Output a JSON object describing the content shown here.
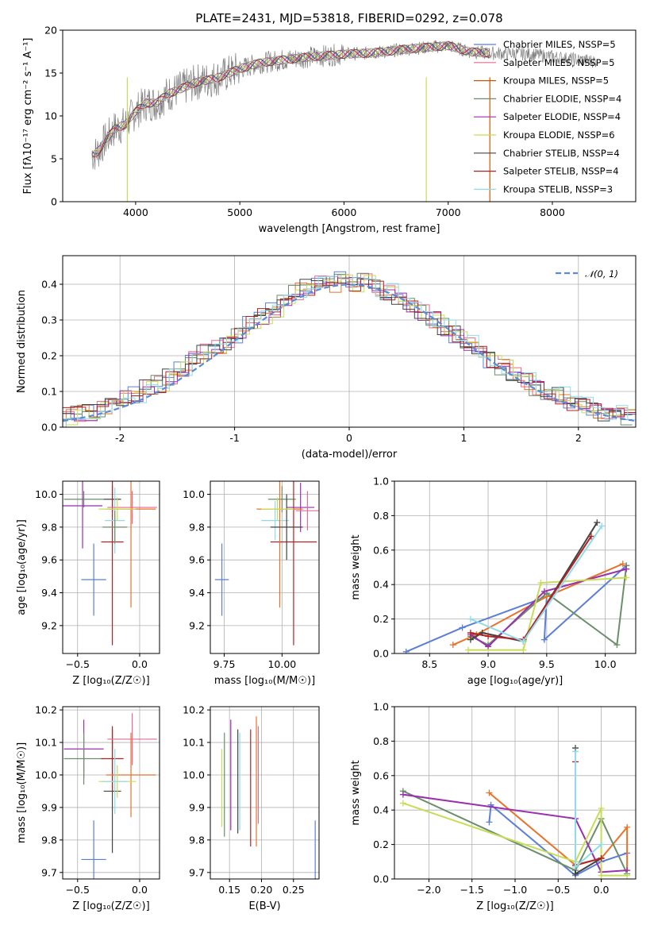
{
  "colors": [
    "#5b7fd6",
    "#e8722a",
    "#6a8f6a",
    "#9b2fae",
    "#d35400",
    "#c7dd55",
    "#444444",
    "#b22222",
    "#8fdcea",
    "#a0a0a0",
    "#e86a8f"
  ],
  "chart_data": [
    {
      "id": "spectrum",
      "type": "line",
      "title": "PLATE=2431, MJD=53818, FIBERID=0292, z=0.078",
      "xlabel": "wavelength [Angstrom, rest frame]",
      "ylabel": "Flux [fλ10⁻¹⁷ erg cm⁻² s⁻¹ A⁻¹]",
      "xlim": [
        3300,
        8800
      ],
      "ylim": [
        0,
        20
      ],
      "xticks": [
        4000,
        5000,
        6000,
        7000,
        8000
      ],
      "yticks": [
        0,
        5,
        10,
        15,
        20
      ],
      "data_x": [
        3600,
        3650,
        3700,
        3800,
        3900,
        4000,
        4100,
        4200,
        4300,
        4400,
        4500,
        4600,
        4700,
        4800,
        4900,
        5000,
        5200,
        5400,
        5600,
        5800,
        6000,
        6200,
        6400,
        6600,
        6800,
        7000,
        7200,
        7400,
        7600,
        7800,
        8000,
        8200,
        8400
      ],
      "data_y": [
        5.5,
        6,
        7,
        8.5,
        9,
        10.5,
        11.5,
        11.5,
        12.5,
        13,
        13.5,
        14,
        14.2,
        14.5,
        15,
        15.5,
        16.2,
        16.5,
        16.8,
        17,
        17.2,
        17.3,
        17.5,
        17.8,
        18,
        18.2,
        17.5,
        17.3,
        17.3,
        17.2,
        16.9,
        16.6,
        16.4
      ],
      "legend": [
        {
          "label": "Chabrier MILES, NSSP=5",
          "color": "#5b7fd6"
        },
        {
          "label": "Salpeter MILES, NSSP=5",
          "color": "#e86a8f"
        },
        {
          "label": "Kroupa MILES, NSSP=5",
          "color": "#d35400"
        },
        {
          "label": "Chabrier ELODIE, NSSP=4",
          "color": "#6a8f6a"
        },
        {
          "label": "Salpeter ELODIE, NSSP=4",
          "color": "#9b2fae"
        },
        {
          "label": "Kroupa ELODIE, NSSP=6",
          "color": "#c7dd55"
        },
        {
          "label": "Chabrier STELIB, NSSP=4",
          "color": "#444444"
        },
        {
          "label": "Salpeter STELIB, NSSP=4",
          "color": "#b22222"
        },
        {
          "label": "Kroupa STELIB, NSSP=3",
          "color": "#8fdcea"
        }
      ],
      "legend_position": "upper-right"
    },
    {
      "id": "residuals",
      "type": "bar",
      "xlabel": "(data-model)/error",
      "ylabel": "Normed distribution",
      "xlim": [
        -2.5,
        2.5
      ],
      "ylim": [
        0,
        0.48
      ],
      "xticks": [
        -2,
        -1,
        0,
        1,
        2
      ],
      "yticks": [
        0.0,
        0.1,
        0.2,
        0.3,
        0.4
      ],
      "bin_width": 0.1,
      "hist": [
        0.03,
        0.04,
        0.04,
        0.05,
        0.06,
        0.08,
        0.09,
        0.11,
        0.12,
        0.14,
        0.16,
        0.19,
        0.21,
        0.22,
        0.24,
        0.26,
        0.29,
        0.31,
        0.33,
        0.36,
        0.38,
        0.39,
        0.4,
        0.4,
        0.42,
        0.4,
        0.41,
        0.39,
        0.38,
        0.36,
        0.34,
        0.32,
        0.3,
        0.28,
        0.26,
        0.24,
        0.22,
        0.19,
        0.17,
        0.15,
        0.13,
        0.11,
        0.1,
        0.09,
        0.07,
        0.06,
        0.05,
        0.04,
        0.04,
        0.03
      ],
      "normal_label": "𝒩(0, 1)",
      "legend_position": "upper-right"
    },
    {
      "id": "age-vs-Z",
      "type": "scatter",
      "xlabel": "Z [log₁₀(Z/Z☉)]",
      "ylabel": "age  [log₁₀(age/yr)]",
      "xlim": [
        -0.62,
        0.16
      ],
      "ylim": [
        9.03,
        10.08
      ],
      "xticks": [
        -0.5,
        0.0
      ],
      "xtick_labels": [
        "−0.5",
        "0.0"
      ],
      "yticks": [
        9.2,
        9.4,
        9.6,
        9.8,
        10.0
      ],
      "points": [
        {
          "x": -0.37,
          "y": 9.48,
          "xerr": 0.1,
          "yerr": 0.22,
          "color": "#5b7fd6"
        },
        {
          "x": -0.45,
          "y": 9.97,
          "xerr": 0.16,
          "yerr": 0.05,
          "color": "#6a8f6a"
        },
        {
          "x": -0.46,
          "y": 9.93,
          "xerr": 0.16,
          "yerr": 0.26,
          "color": "#9b2fae"
        },
        {
          "x": -0.22,
          "y": 9.97,
          "xerr": 0.07,
          "yerr": 0.08,
          "color": "#444444"
        },
        {
          "x": -0.22,
          "y": 9.71,
          "xerr": 0.09,
          "yerr": 0.63,
          "color": "#b22222"
        },
        {
          "x": -0.2,
          "y": 9.84,
          "xerr": 0.08,
          "yerr": 0.2,
          "color": "#8fdcea"
        },
        {
          "x": -0.06,
          "y": 9.92,
          "xerr": 0.2,
          "yerr": 0.1,
          "color": "#e86a8f"
        },
        {
          "x": -0.07,
          "y": 9.91,
          "xerr": 0.2,
          "yerr": 0.6,
          "color": "#e8722a"
        },
        {
          "x": -0.18,
          "y": 9.91,
          "xerr": 0.15,
          "yerr": 0.07,
          "color": "#c7dd55"
        },
        {
          "x": -0.2,
          "y": 9.8,
          "xerr": 0.1,
          "yerr": 0.1,
          "color": "#6a8f6a"
        }
      ]
    },
    {
      "id": "age-vs-mass",
      "type": "scatter",
      "xlabel": "mass [log₁₀(M/M☉)]",
      "ylabel": "",
      "xlim": [
        9.69,
        10.16
      ],
      "ylim": [
        9.03,
        10.08
      ],
      "xticks": [
        9.75,
        10.0
      ],
      "xtick_labels": [
        "9.75",
        "10.00"
      ],
      "yticks": [
        9.2,
        9.4,
        9.6,
        9.8,
        10.0
      ],
      "points": [
        {
          "x": 9.74,
          "y": 9.48,
          "xerr": 0.03,
          "yerr": 0.22,
          "color": "#5b7fd6"
        },
        {
          "x": 10.0,
          "y": 9.97,
          "xerr": 0.06,
          "yerr": 0.08,
          "color": "#6a8f6a"
        },
        {
          "x": 10.08,
          "y": 9.92,
          "xerr": 0.06,
          "yerr": 0.15,
          "color": "#9b2fae"
        },
        {
          "x": 9.97,
          "y": 9.84,
          "xerr": 0.06,
          "yerr": 0.12,
          "color": "#8fdcea"
        },
        {
          "x": 10.05,
          "y": 9.71,
          "xerr": 0.1,
          "yerr": 0.63,
          "color": "#b22222"
        },
        {
          "x": 9.99,
          "y": 9.91,
          "xerr": 0.1,
          "yerr": 0.6,
          "color": "#e8722a"
        },
        {
          "x": 10.02,
          "y": 9.8,
          "xerr": 0.07,
          "yerr": 0.2,
          "color": "#444444"
        },
        {
          "x": 10.11,
          "y": 9.9,
          "xerr": 0.05,
          "yerr": 0.12,
          "color": "#e86a8f"
        },
        {
          "x": 9.98,
          "y": 9.91,
          "xerr": 0.07,
          "yerr": 0.07,
          "color": "#c7dd55"
        }
      ]
    },
    {
      "id": "weight-vs-age",
      "type": "line",
      "xlabel": "age  [log₁₀(age/yr)]",
      "ylabel": "mass weight",
      "xlim": [
        8.2,
        10.26
      ],
      "ylim": [
        0,
        1.0
      ],
      "xticks": [
        8.5,
        9.0,
        9.5,
        10.0
      ],
      "xtick_labels": [
        "8.5",
        "9.0",
        "9.5",
        "10.0"
      ],
      "yticks": [
        0.0,
        0.2,
        0.4,
        0.6,
        0.8,
        1.0
      ],
      "series": [
        {
          "color": "#5b7fd6",
          "x": [
            8.3,
            8.78,
            9.5,
            9.48,
            10.18
          ],
          "y": [
            0.01,
            0.15,
            0.33,
            0.08,
            0.51
          ]
        },
        {
          "color": "#e8722a",
          "x": [
            8.7,
            8.9,
            9.5,
            10.15
          ],
          "y": [
            0.05,
            0.11,
            0.33,
            0.52
          ]
        },
        {
          "color": "#6a8f6a",
          "x": [
            8.85,
            9.0,
            9.5,
            10.1,
            10.18
          ],
          "y": [
            0.1,
            0.05,
            0.35,
            0.05,
            0.51
          ]
        },
        {
          "color": "#9b2fae",
          "x": [
            8.85,
            9.0,
            9.48,
            10.18
          ],
          "y": [
            0.11,
            0.04,
            0.36,
            0.49
          ]
        },
        {
          "color": "#c7dd55",
          "x": [
            8.83,
            9.3,
            9.45,
            10.18
          ],
          "y": [
            0.02,
            0.02,
            0.41,
            0.44
          ]
        },
        {
          "color": "#444444",
          "x": [
            8.85,
            8.95,
            9.3,
            9.93
          ],
          "y": [
            0.08,
            0.12,
            0.07,
            0.76
          ]
        },
        {
          "color": "#b22222",
          "x": [
            8.85,
            9.0,
            9.3,
            9.88
          ],
          "y": [
            0.12,
            0.1,
            0.08,
            0.68
          ]
        },
        {
          "color": "#8fdcea",
          "x": [
            8.85,
            9.3,
            9.97
          ],
          "y": [
            0.2,
            0.07,
            0.74
          ]
        }
      ]
    },
    {
      "id": "mass-vs-Z",
      "type": "scatter",
      "xlabel": "Z [log₁₀(Z/Z☉)]",
      "ylabel": "mass [log₁₀(M/M☉)]",
      "xlim": [
        -0.62,
        0.16
      ],
      "ylim": [
        9.68,
        10.21
      ],
      "xticks": [
        -0.5,
        0.0
      ],
      "xtick_labels": [
        "−0.5",
        "0.0"
      ],
      "yticks": [
        9.7,
        9.8,
        9.9,
        10.0,
        10.1,
        10.2
      ],
      "points": [
        {
          "x": -0.37,
          "y": 9.74,
          "xerr": 0.1,
          "yerr": 0.12,
          "color": "#5b7fd6"
        },
        {
          "x": -0.45,
          "y": 10.08,
          "xerr": 0.16,
          "yerr": 0.09,
          "color": "#9b2fae"
        },
        {
          "x": -0.45,
          "y": 10.05,
          "xerr": 0.16,
          "yerr": 0.08,
          "color": "#6a8f6a"
        },
        {
          "x": -0.22,
          "y": 9.95,
          "xerr": 0.07,
          "yerr": 0.19,
          "color": "#444444"
        },
        {
          "x": -0.22,
          "y": 10.05,
          "xerr": 0.09,
          "yerr": 0.1,
          "color": "#b22222"
        },
        {
          "x": -0.07,
          "y": 10.0,
          "xerr": 0.2,
          "yerr": 0.13,
          "color": "#e8722a"
        },
        {
          "x": -0.06,
          "y": 10.11,
          "xerr": 0.2,
          "yerr": 0.08,
          "color": "#e86a8f"
        },
        {
          "x": -0.18,
          "y": 9.98,
          "xerr": 0.15,
          "yerr": 0.05,
          "color": "#c7dd55"
        },
        {
          "x": -0.2,
          "y": 9.98,
          "xerr": 0.1,
          "yerr": 0.1,
          "color": "#8fdcea"
        }
      ]
    },
    {
      "id": "mass-vs-EBV",
      "type": "scatter",
      "xlabel": "E(B-V)",
      "ylabel": "",
      "xlim": [
        0.12,
        0.29
      ],
      "ylim": [
        9.68,
        10.21
      ],
      "xticks": [
        0.15,
        0.2,
        0.25
      ],
      "xtick_labels": [
        "0.15",
        "0.20",
        "0.25"
      ],
      "yticks": [
        9.7,
        9.8,
        9.9,
        10.0,
        10.1,
        10.2
      ],
      "points": [
        {
          "x": 0.138,
          "y": 9.96,
          "xerr": 0,
          "yerr": 0.12,
          "color": "#c7dd55"
        },
        {
          "x": 0.142,
          "y": 9.97,
          "xerr": 0,
          "yerr": 0.16,
          "color": "#6a8f6a"
        },
        {
          "x": 0.152,
          "y": 10.0,
          "xerr": 0,
          "yerr": 0.17,
          "color": "#9b2fae"
        },
        {
          "x": 0.163,
          "y": 9.98,
          "xerr": 0,
          "yerr": 0.16,
          "color": "#444444"
        },
        {
          "x": 0.166,
          "y": 9.98,
          "xerr": 0,
          "yerr": 0.15,
          "color": "#8fdcea"
        },
        {
          "x": 0.183,
          "y": 9.96,
          "xerr": 0,
          "yerr": 0.18,
          "color": "#b22222"
        },
        {
          "x": 0.192,
          "y": 9.98,
          "xerr": 0,
          "yerr": 0.2,
          "color": "#e8722a"
        },
        {
          "x": 0.195,
          "y": 10.0,
          "xerr": 0,
          "yerr": 0.15,
          "color": "#e86a8f"
        },
        {
          "x": 0.284,
          "y": 9.74,
          "xerr": 0,
          "yerr": 0.12,
          "color": "#5b7fd6"
        }
      ]
    },
    {
      "id": "weight-vs-Z",
      "type": "line",
      "xlabel": "Z [log₁₀(Z/Z☉)]",
      "ylabel": "mass weight",
      "xlim": [
        -2.4,
        0.4
      ],
      "ylim": [
        0,
        1.0
      ],
      "xticks": [
        -2.0,
        -1.5,
        -1.0,
        -0.5,
        0.0
      ],
      "xtick_labels": [
        "−2.0",
        "−1.5",
        "−1.0",
        "−0.5",
        "0.0"
      ],
      "yticks": [
        0.0,
        0.2,
        0.4,
        0.6,
        0.8,
        1.0
      ],
      "series": [
        {
          "color": "#5b7fd6",
          "x": [
            -1.3,
            -1.28,
            -0.3,
            0.0,
            0.3
          ],
          "y": [
            0.33,
            0.43,
            0.02,
            0.1,
            0.15
          ]
        },
        {
          "color": "#e8722a",
          "x": [
            -1.3,
            -0.3,
            0.0,
            0.3,
            0.3
          ],
          "y": [
            0.5,
            0.08,
            0.12,
            0.3,
            0.05
          ]
        },
        {
          "color": "#6a8f6a",
          "x": [
            -2.3,
            -0.3,
            0.0,
            0.3
          ],
          "y": [
            0.51,
            0.05,
            0.35,
            0.03
          ]
        },
        {
          "color": "#9b2fae",
          "x": [
            -2.3,
            -0.3,
            0.0,
            0.3
          ],
          "y": [
            0.49,
            0.35,
            0.04,
            0.05
          ]
        },
        {
          "color": "#c7dd55",
          "x": [
            -2.3,
            -0.3,
            0.0,
            0.0,
            0.3
          ],
          "y": [
            0.44,
            0.1,
            0.41,
            0.02,
            0.02
          ]
        },
        {
          "color": "#444444",
          "x": [
            -0.3,
            -0.3,
            0.0
          ],
          "y": [
            0.76,
            0.03,
            0.12
          ]
        },
        {
          "color": "#b22222",
          "x": [
            -0.3,
            -0.3,
            0.0
          ],
          "y": [
            0.68,
            0.08,
            0.12
          ]
        },
        {
          "color": "#8fdcea",
          "x": [
            -0.3,
            -0.3,
            0.0
          ],
          "y": [
            0.74,
            0.07,
            0.2
          ]
        }
      ]
    }
  ]
}
